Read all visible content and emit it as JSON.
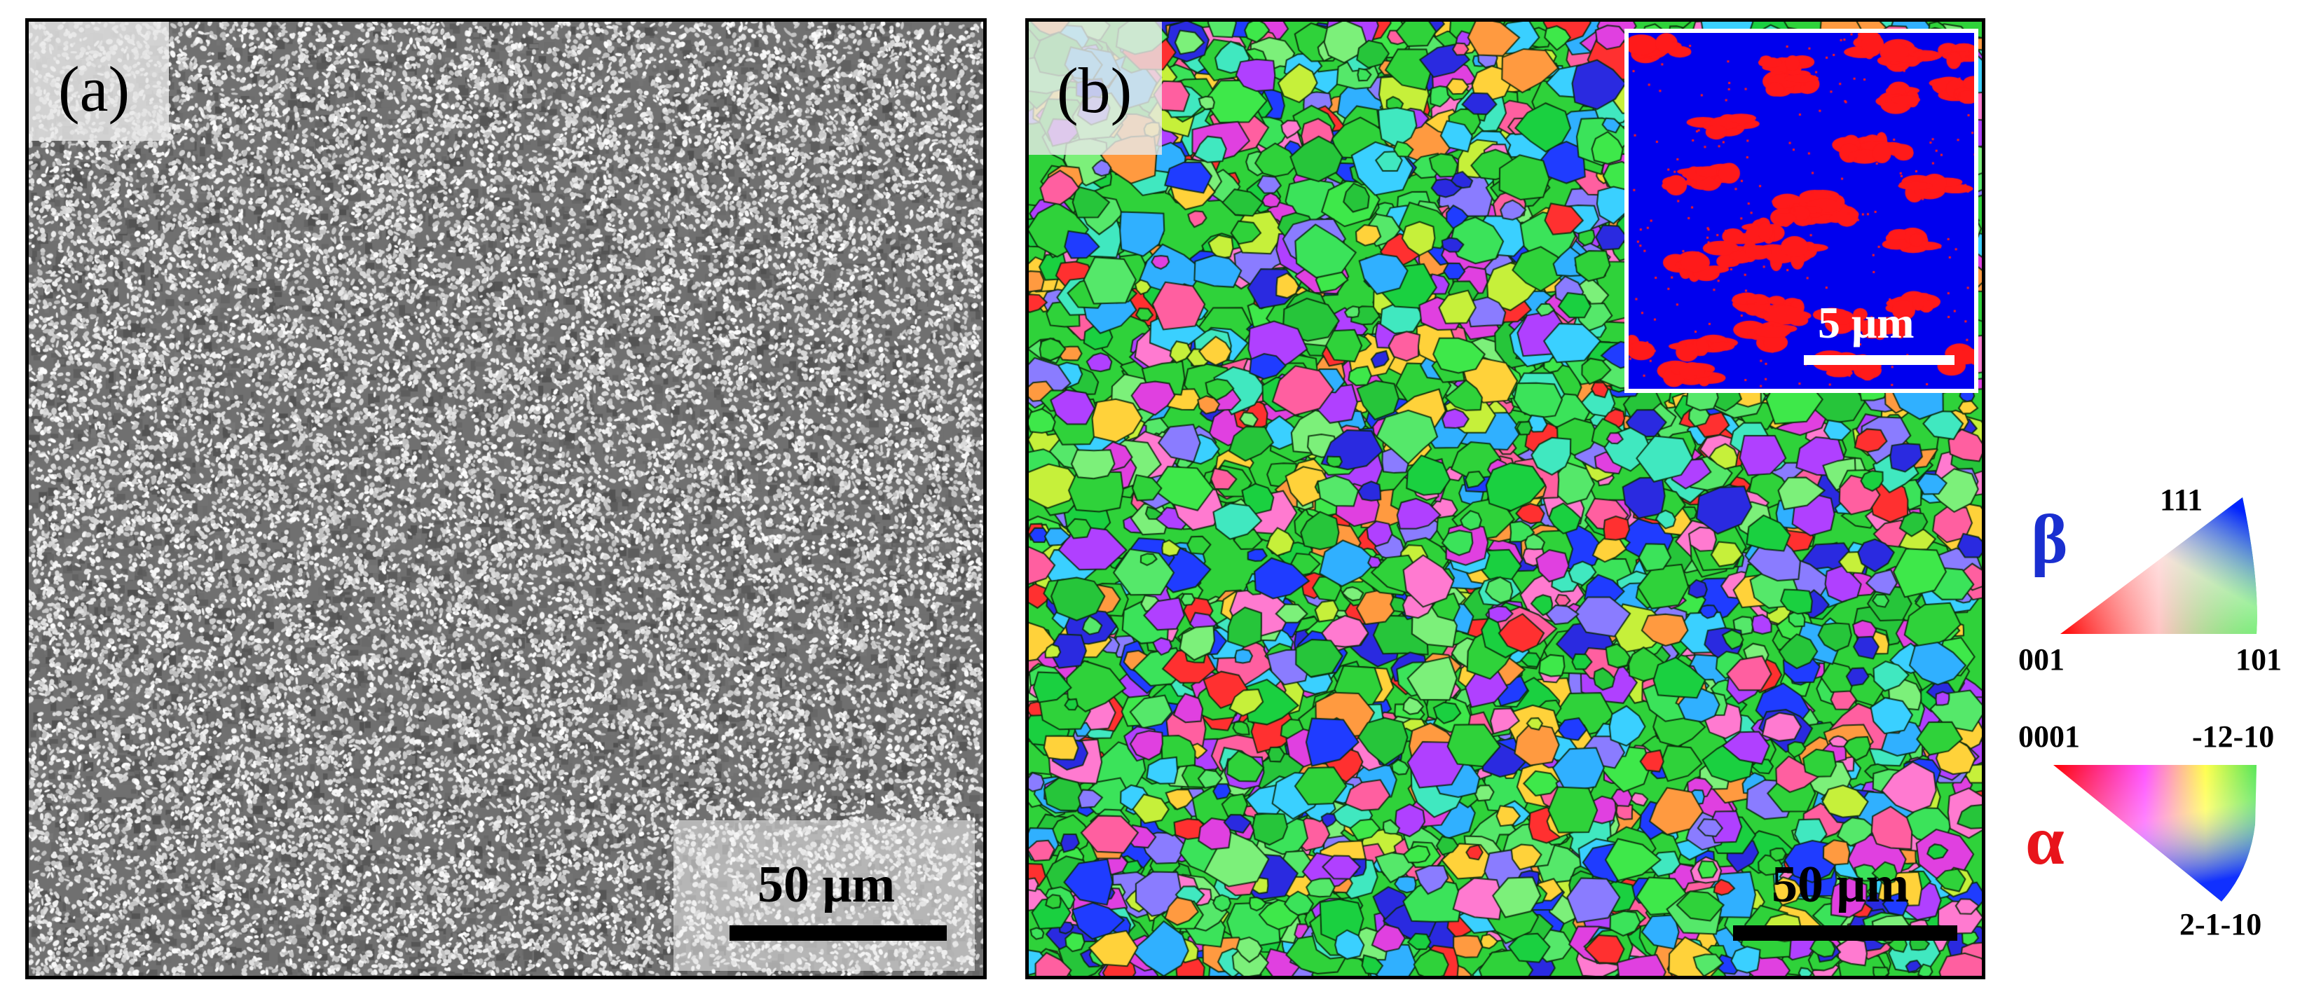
{
  "panel_a": {
    "label": "(a)",
    "scale_bar": "50 μm"
  },
  "panel_b": {
    "label": "(b)",
    "scale_bar": "50 μm",
    "inset_scale_bar": "5 μm"
  },
  "ipf_key": {
    "beta": {
      "symbol": "β",
      "corner_top": "111",
      "corner_left": "001",
      "corner_right": "101",
      "color": "#1a2fd0"
    },
    "alpha": {
      "symbol": "α",
      "corner_left": "0001",
      "corner_right": "-12-10",
      "corner_bottom": "2-1-10",
      "color": "#e8141b"
    }
  },
  "colors": {
    "grain_green": "#2fd23a",
    "inset_beta": "#0000ee",
    "inset_alpha": "#ff1a1a"
  }
}
